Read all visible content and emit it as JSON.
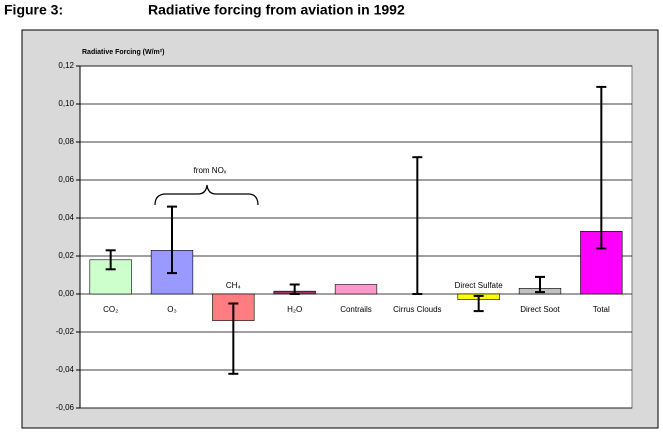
{
  "header": {
    "figure_label": "Figure 3:",
    "title": "Radiative forcing from aviation in 1992"
  },
  "chart_data": {
    "type": "bar",
    "y_axis_label": "Radiative Forcing (W/m²)",
    "annotation": "from NOₓ",
    "categories": [
      "CO₂",
      "O₃",
      "CH₄",
      "H₂O",
      "Contrails",
      "Cirrus Clouds",
      "Direct Sulfate",
      "Direct Soot",
      "Total"
    ],
    "values": [
      0.018,
      0.023,
      -0.014,
      0.0015,
      0.005,
      0,
      -0.003,
      0.003,
      0.033
    ],
    "error_low": [
      0.013,
      0.011,
      -0.042,
      0,
      null,
      0,
      -0.009,
      0.001,
      0.024
    ],
    "error_high": [
      0.023,
      0.046,
      -0.005,
      0.005,
      null,
      0.072,
      -0.001,
      0.009,
      0.109
    ],
    "colors": [
      "#ccffcc",
      "#9999ff",
      "#ff7c80",
      "#993366",
      "#ff99cc",
      null,
      "#ffff00",
      "#c0c0c0",
      "#ff00ff"
    ],
    "ylim": [
      -0.06,
      0.12
    ],
    "yticks": [
      {
        "value": -0.06,
        "label": "-0,06"
      },
      {
        "value": -0.04,
        "label": "-0,04"
      },
      {
        "value": -0.02,
        "label": "-0,02"
      },
      {
        "value": 0,
        "label": "0,00"
      },
      {
        "value": 0.02,
        "label": "0,02"
      },
      {
        "value": 0.04,
        "label": "0,04"
      },
      {
        "value": 0.06,
        "label": "0,06"
      },
      {
        "value": 0.08,
        "label": "0,08"
      },
      {
        "value": 0.1,
        "label": "0,10"
      },
      {
        "value": 0.12,
        "label": "0,12"
      }
    ],
    "grid": true
  }
}
